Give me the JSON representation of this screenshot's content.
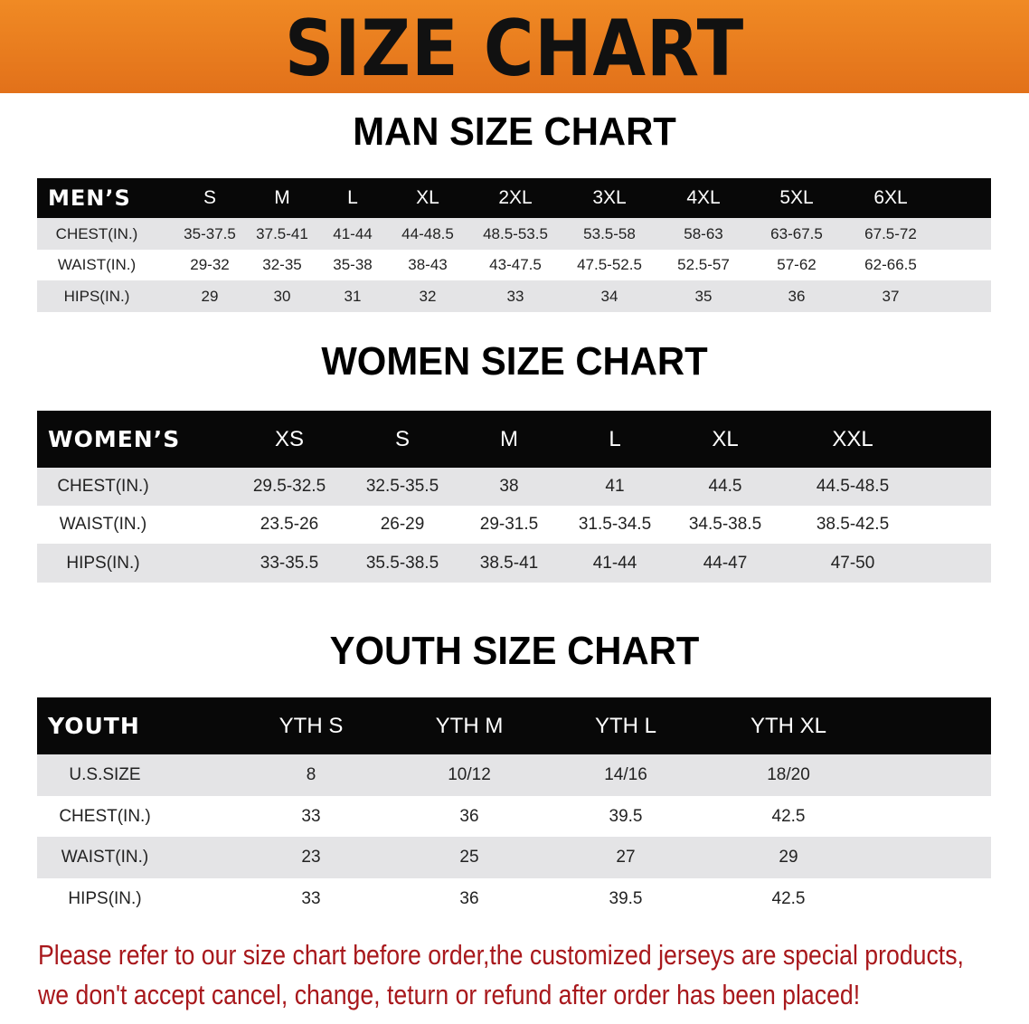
{
  "banner": {
    "title": "SIZE CHART",
    "color": "#e97b1f"
  },
  "men": {
    "title": "MAN SIZE CHART",
    "corner": "MEN’S",
    "columns": [
      "S",
      "M",
      "L",
      "XL",
      "2XL",
      "3XL",
      "4XL",
      "5XL",
      "6XL"
    ],
    "rows": [
      {
        "label": "CHEST(IN.)",
        "values": [
          "35-37.5",
          "37.5-41",
          "41-44",
          "44-48.5",
          "48.5-53.5",
          "53.5-58",
          "58-63",
          "63-67.5",
          "67.5-72"
        ]
      },
      {
        "label": "WAIST(IN.)",
        "values": [
          "29-32",
          "32-35",
          "35-38",
          "38-43",
          "43-47.5",
          "47.5-52.5",
          "52.5-57",
          "57-62",
          "62-66.5"
        ]
      },
      {
        "label": "HIPS(IN.)",
        "values": [
          "29",
          "30",
          "31",
          "32",
          "33",
          "34",
          "35",
          "36",
          "37"
        ]
      }
    ]
  },
  "women": {
    "title": "WOMEN SIZE CHART",
    "corner": "WOMEN’S",
    "columns": [
      "XS",
      "S",
      "M",
      "L",
      "XL",
      "XXL"
    ],
    "rows": [
      {
        "label": "CHEST(IN.)",
        "values": [
          "29.5-32.5",
          "32.5-35.5",
          "38",
          "41",
          "44.5",
          "44.5-48.5"
        ]
      },
      {
        "label": "WAIST(IN.)",
        "values": [
          "23.5-26",
          "26-29",
          "29-31.5",
          "31.5-34.5",
          "34.5-38.5",
          "38.5-42.5"
        ]
      },
      {
        "label": "HIPS(IN.)",
        "values": [
          "33-35.5",
          "35.5-38.5",
          "38.5-41",
          "41-44",
          "44-47",
          "47-50"
        ]
      }
    ]
  },
  "youth": {
    "title": "YOUTH SIZE CHART",
    "corner": "YOUTH",
    "columns": [
      "YTH S",
      "YTH M",
      "YTH L",
      "YTH XL"
    ],
    "rows": [
      {
        "label": "U.S.SIZE",
        "values": [
          "8",
          "10/12",
          "14/16",
          "18/20"
        ]
      },
      {
        "label": "CHEST(IN.)",
        "values": [
          "33",
          "36",
          "39.5",
          "42.5"
        ]
      },
      {
        "label": "WAIST(IN.)",
        "values": [
          "23",
          "25",
          "27",
          "29"
        ]
      },
      {
        "label": "HIPS(IN.)",
        "values": [
          "33",
          "36",
          "39.5",
          "42.5"
        ]
      }
    ]
  },
  "footer": {
    "line1": "Please refer to our size chart before order,the customized jerseys are special products,",
    "line2": "we don't accept cancel, change, teturn or refund after order has been placed!",
    "color": "#a8181c"
  }
}
